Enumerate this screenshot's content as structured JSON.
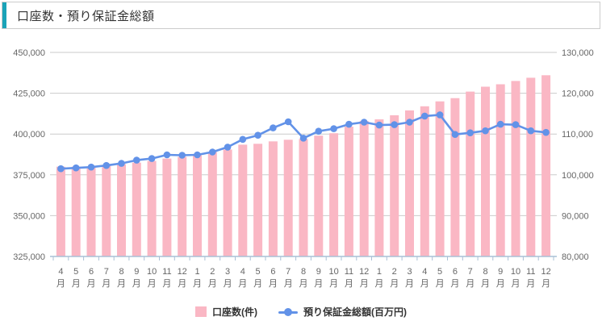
{
  "header": {
    "title": "口座数・預り保証金総額"
  },
  "colors": {
    "accent": "#1aa3b8",
    "border": "#cccccc",
    "bar": "#fab7c4",
    "line": "#6292e8",
    "grid": "#cbcbcb",
    "axis": "#a9c0d6",
    "tick_text": "#666666",
    "title_text": "#333333",
    "legend_text": "#333333"
  },
  "chart_data": {
    "type": "bar+line combo",
    "title": "口座数・預り保証金総額",
    "categories": [
      "4月",
      "5月",
      "6月",
      "7月",
      "8月",
      "9月",
      "10月",
      "11月",
      "12月",
      "1月",
      "2月",
      "3月",
      "4月",
      "5月",
      "6月",
      "7月",
      "8月",
      "9月",
      "10月",
      "11月",
      "12月",
      "1月",
      "2月",
      "3月",
      "4月",
      "5月",
      "6月",
      "7月",
      "8月",
      "9月",
      "10月",
      "11月",
      "12月"
    ],
    "series": [
      {
        "name": "口座数(件)",
        "chart_type": "bar",
        "y_axis": "left",
        "values": [
          380000,
          380000,
          380000,
          380500,
          381500,
          382500,
          383500,
          385000,
          386000,
          387000,
          389000,
          390500,
          393500,
          394000,
          395500,
          396500,
          397000,
          399000,
          400500,
          404500,
          408000,
          409000,
          411500,
          414500,
          417000,
          420000,
          422000,
          426000,
          429000,
          430500,
          432500,
          434500,
          436000
        ]
      },
      {
        "name": "預り保証金総額(百万円)",
        "chart_type": "line",
        "y_axis": "right",
        "values": [
          101500,
          101700,
          101900,
          102300,
          102800,
          103600,
          104000,
          104900,
          104800,
          104900,
          105600,
          106800,
          108700,
          109700,
          111500,
          113000,
          109000,
          110700,
          111300,
          112400,
          112900,
          112200,
          112300,
          112900,
          114400,
          114700,
          109900,
          110300,
          110800,
          112400,
          112300,
          110800,
          110400
        ]
      }
    ],
    "left_axis": {
      "min": 325000,
      "max": 450000,
      "step": 25000,
      "tick_labels": [
        "450,000",
        "425,000",
        "400,000",
        "375,000",
        "350,000",
        "325,000"
      ]
    },
    "right_axis": {
      "min": 80000,
      "max": 130000,
      "step": 10000,
      "tick_labels": [
        "130,000",
        "120,000",
        "110,000",
        "100,000",
        "90,000",
        "80,000"
      ]
    },
    "grid": true,
    "legend_position": "bottom"
  }
}
